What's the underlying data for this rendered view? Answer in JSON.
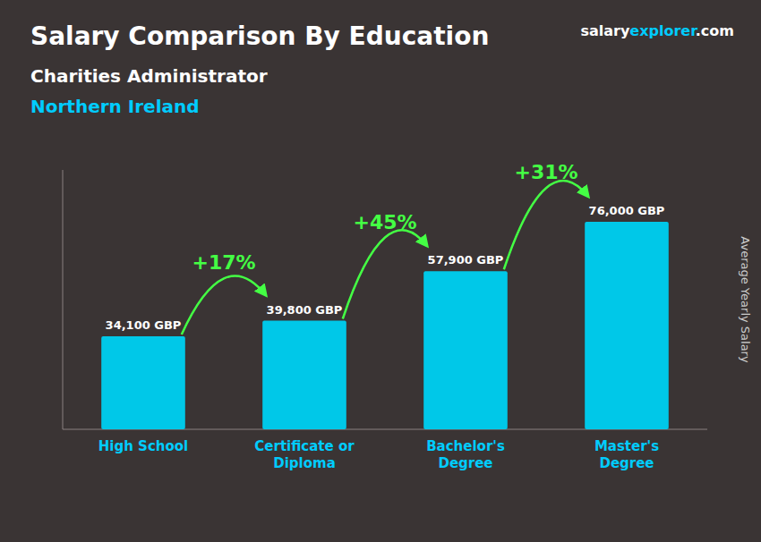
{
  "chart_data": {
    "type": "bar",
    "title": "Salary Comparison By Education",
    "subtitle": [
      "Charities Administrator",
      "Northern Ireland"
    ],
    "y_label": "Average Yearly Salary",
    "credit": [
      "salary",
      "explorer",
      ".com"
    ],
    "categories": [
      "High School",
      "Certificate or\nDiploma",
      "Bachelor's\nDegree",
      "Master's\nDegree"
    ],
    "values": [
      34100,
      39800,
      57900,
      76000
    ],
    "value_labels": [
      "34,100 GBP",
      "39,800 GBP",
      "57,900 GBP",
      "76,000 GBP"
    ],
    "data_labels": true,
    "annotations": [
      "+17%",
      "+45%",
      "+31%"
    ],
    "color": "#00c8e8",
    "ylim": [
      0,
      95000
    ],
    "tick_labels": "x",
    "grid": false
  }
}
